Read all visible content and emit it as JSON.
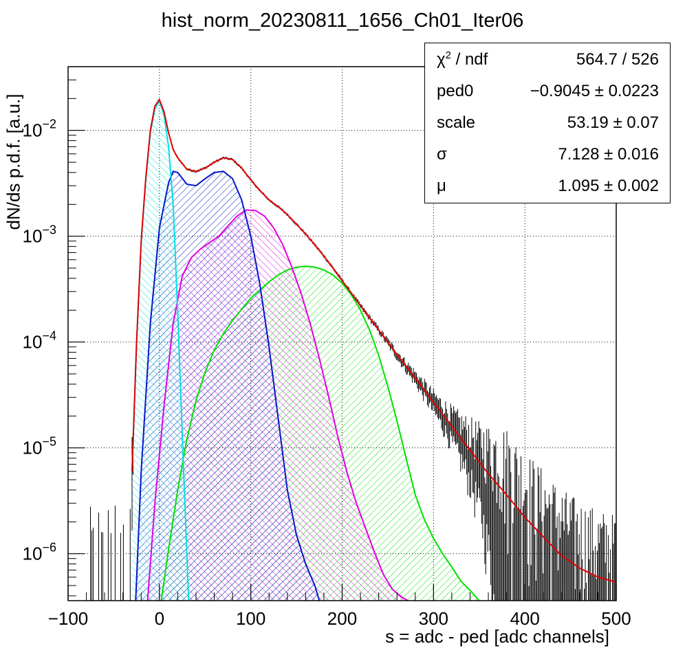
{
  "title": "hist_norm_20230811_1656_Ch01_Iter06",
  "xlabel": "s = adc - ped [adc channels]",
  "ylabel": "dN/ds p.d.f. [a.u.]",
  "stats": [
    {
      "name_main": "χ",
      "name_sup": "2",
      "name_rest": " / ndf",
      "value": "564.7 / 526"
    },
    {
      "name_main": "ped0",
      "name_sup": "",
      "name_rest": "",
      "value": "−0.9045 ± 0.0223"
    },
    {
      "name_main": "scale",
      "name_sup": "",
      "name_rest": "",
      "value": "53.19 ± 0.07"
    },
    {
      "name_main": "σ",
      "name_sup": "",
      "name_rest": "",
      "value": "7.128 ± 0.016"
    },
    {
      "name_main": "μ",
      "name_sup": "",
      "name_rest": "",
      "value": "1.095 ± 0.002"
    }
  ],
  "colors": {
    "total": "#e00000",
    "n0": "#00e0e0",
    "n1": "#0018c8",
    "n2": "#e000e0",
    "n3": "#00e000",
    "data": "#000000"
  },
  "chart_data": {
    "type": "line",
    "title": "hist_norm_20230811_1656_Ch01_Iter06",
    "xlabel": "s = adc - ped [adc channels]",
    "ylabel": "dN/ds p.d.f. [a.u.]",
    "xlim": [
      -100,
      500
    ],
    "ylim": [
      3.6e-07,
      0.04
    ],
    "yscale": "log",
    "grid": true,
    "x_ticks": [
      -100,
      0,
      100,
      200,
      300,
      400,
      500
    ],
    "x_tick_labels": [
      "−100",
      "0",
      "100",
      "200",
      "300",
      "400",
      "500"
    ],
    "y_ticks": [
      1e-06,
      1e-05,
      0.0001,
      0.001,
      0.01
    ],
    "y_tick_bases": [
      "10",
      "10",
      "10",
      "10",
      "10"
    ],
    "y_tick_exponents": [
      "−6",
      "−5",
      "−4",
      "−3",
      "−2"
    ],
    "legend": "top-right",
    "series": [
      {
        "key": "total",
        "x": [
          -30,
          -25,
          -20,
          -15,
          -10,
          -5,
          0,
          5,
          10,
          15,
          20,
          30,
          40,
          50,
          60,
          70,
          80,
          90,
          100,
          110,
          120,
          130,
          140,
          150,
          160,
          170,
          180,
          190,
          200,
          220,
          240,
          260,
          280,
          300,
          320,
          340,
          360,
          380,
          400,
          420,
          440,
          460,
          480,
          500
        ],
        "y": [
          6e-06,
          0.0001,
          0.0009,
          0.0035,
          0.01,
          0.017,
          0.0195,
          0.015,
          0.0095,
          0.0066,
          0.0055,
          0.0043,
          0.0041,
          0.0044,
          0.005,
          0.0055,
          0.0053,
          0.0044,
          0.0034,
          0.0027,
          0.0022,
          0.0019,
          0.0016,
          0.0013,
          0.00105,
          0.00083,
          0.00065,
          0.0005,
          0.00038,
          0.00022,
          0.00013,
          7.6e-05,
          4.6e-05,
          2.7e-05,
          1.6e-05,
          9.5e-06,
          5.7e-06,
          3.6e-06,
          2.2e-06,
          1.45e-06,
          9.6e-07,
          7.3e-07,
          6e-07,
          5.4e-07
        ]
      },
      {
        "key": "n0",
        "x": [
          -30,
          -25,
          -20,
          -15,
          -10,
          -5,
          0,
          5,
          10,
          15,
          20,
          25,
          30,
          32
        ],
        "y": [
          6e-06,
          0.0001,
          0.0009,
          0.0034,
          0.0095,
          0.016,
          0.019,
          0.014,
          0.007,
          0.002,
          0.00019,
          1.3e-05,
          1e-06,
          3.6e-07
        ]
      },
      {
        "key": "n1",
        "x": [
          -26,
          -20,
          -10,
          0,
          10,
          15,
          20,
          30,
          40,
          50,
          60,
          70,
          80,
          90,
          100,
          110,
          120,
          130,
          140,
          150,
          160,
          170,
          175
        ],
        "y": [
          3.6e-07,
          6e-06,
          0.00015,
          0.0012,
          0.0032,
          0.0041,
          0.004,
          0.0031,
          0.003,
          0.0035,
          0.004,
          0.0041,
          0.0035,
          0.0022,
          0.001,
          0.00035,
          9e-05,
          1.9e-05,
          4e-06,
          1.5e-06,
          8e-07,
          5e-07,
          3.6e-07
        ]
      },
      {
        "key": "n2",
        "x": [
          -13,
          -5,
          5,
          15,
          25,
          35,
          45,
          55,
          65,
          75,
          85,
          95,
          105,
          115,
          125,
          135,
          145,
          155,
          165,
          175,
          185,
          195,
          205,
          215,
          225,
          235,
          245,
          255,
          265,
          272
        ],
        "y": [
          3.6e-07,
          3e-06,
          2.5e-05,
          0.00015,
          0.00042,
          0.00063,
          0.00076,
          0.00087,
          0.001,
          0.00125,
          0.00155,
          0.00177,
          0.00175,
          0.00155,
          0.0012,
          0.00083,
          0.00051,
          0.00029,
          0.00015,
          7e-05,
          3.1e-05,
          1.3e-05,
          6e-06,
          3.1e-06,
          1.8e-06,
          1.05e-06,
          6.4e-07,
          4.6e-07,
          3.9e-07,
          3.6e-07
        ]
      },
      {
        "key": "n3",
        "x": [
          2,
          10,
          20,
          30,
          40,
          50,
          60,
          70,
          80,
          90,
          100,
          110,
          120,
          130,
          140,
          150,
          160,
          170,
          180,
          190,
          200,
          210,
          220,
          230,
          240,
          250,
          260,
          270,
          280,
          290,
          300,
          310,
          320,
          330,
          340,
          350
        ],
        "y": [
          3.6e-07,
          1.1e-06,
          4e-06,
          1.2e-05,
          2.8e-05,
          5.2e-05,
          8.4e-05,
          0.00012,
          0.00016,
          0.000205,
          0.00026,
          0.00031,
          0.00037,
          0.00043,
          0.00048,
          0.00051,
          0.00052,
          0.00051,
          0.00048,
          0.00043,
          0.00036,
          0.00028,
          0.0002,
          0.00013,
          7.5e-05,
          3.8e-05,
          1.8e-05,
          8e-06,
          3.6e-06,
          2.1e-06,
          1.4e-06,
          1e-06,
          7.5e-07,
          5.5e-07,
          4.5e-07,
          3.6e-07
        ]
      }
    ]
  }
}
